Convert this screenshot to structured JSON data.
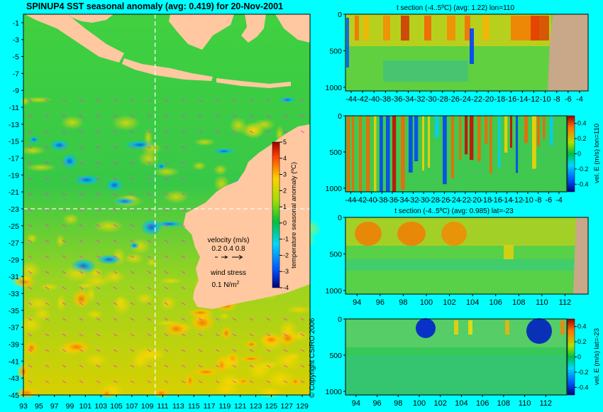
{
  "colors": {
    "background": "#00ffff",
    "land": "#ffc8a0",
    "section_land": "#c8a888",
    "grid": "#ffffff",
    "arrow": "#ff33cc"
  },
  "main_map": {
    "title": "SPINUP4 SST seasonal anomaly  (avg: 0.419)  for 20-Nov-2001",
    "colorbar_label": "temperature seasonal anomaly (ºC)",
    "colorbar_ticks": [
      "5",
      "4",
      "3",
      "2",
      "1",
      "0",
      "-1",
      "-2",
      "-3",
      "-4"
    ],
    "y_ticks": [
      "-1",
      "-3",
      "-5",
      "-7",
      "-9",
      "-11",
      "-13",
      "-15",
      "-17",
      "-19",
      "-21",
      "-23",
      "-25",
      "-27",
      "-29",
      "-31",
      "-33",
      "-35",
      "-37",
      "-39",
      "-41",
      "-43",
      "-45"
    ],
    "x_ticks": [
      "93",
      "95",
      "97",
      "99",
      "101",
      "103",
      "105",
      "107",
      "109",
      "111",
      "113",
      "115",
      "117",
      "119",
      "121",
      "123",
      "125",
      "127",
      "129"
    ],
    "section_lat": -23,
    "section_lon": 110,
    "legend": {
      "velocity_title": "velocity (m/s)",
      "velocity_scale": "0.2 0.4 0.8",
      "wind_title": "wind stress",
      "wind_scale": "0.1 N/m",
      "wind_scale_sup": "2"
    }
  },
  "copyright": "© Copyright CSIRO 2006",
  "chart_data": [
    {
      "type": "heatmap",
      "title": "SPINUP4 SST seasonal anomaly  (avg: 0.419)  for 20-Nov-2001",
      "x_ticks": [
        93,
        95,
        97,
        99,
        101,
        103,
        105,
        107,
        109,
        111,
        113,
        115,
        117,
        119,
        121,
        123,
        125,
        127,
        129
      ],
      "y_ticks": [
        -1,
        -3,
        -5,
        -7,
        -9,
        -11,
        -13,
        -15,
        -17,
        -19,
        -21,
        -23,
        -25,
        -27,
        -29,
        -31,
        -33,
        -35,
        -37,
        -39,
        -41,
        -43,
        -45
      ],
      "xlim": [
        93,
        130
      ],
      "ylim": [
        -45,
        0
      ],
      "color_range": [
        -4,
        5
      ]
    },
    {
      "type": "heatmap",
      "title": "t section (-4..5ºC) (avg: 1.22) lon=110",
      "x_ticks": [
        "-44",
        "-42",
        "-40",
        "-38",
        "-36",
        "-34",
        "-32",
        "-30",
        "-28",
        "-26",
        "-24",
        "-22",
        "-20",
        "-18",
        "-16",
        "-14",
        "-12",
        "-10",
        "-8",
        "-6",
        "-4"
      ],
      "y_ticks": [
        0,
        500,
        1000
      ],
      "xlim": [
        -45,
        -2.5
      ],
      "ylim": [
        1050,
        0
      ],
      "avg": 1.22
    },
    {
      "type": "heatmap",
      "title": "",
      "colorbar_label": "vel. E (m/s) lon=110",
      "colorbar_ticks": [
        "0.4",
        "0.2",
        "0",
        "-0.2",
        "-0.4"
      ],
      "x_ticks": [
        "-44",
        "-42",
        "-40",
        "-38",
        "-36",
        "-34",
        "-32",
        "-30",
        "-28",
        "-26",
        "-24",
        "-22",
        "-20",
        "-18",
        "-16",
        "-14",
        "-12",
        "-10",
        "-8",
        "-6",
        "-4"
      ],
      "y_ticks": [
        0,
        500,
        1000
      ],
      "xlim": [
        -45,
        -2.5
      ],
      "ylim": [
        1050,
        0
      ]
    },
    {
      "type": "heatmap",
      "title": "t section (-4..5ºC) (avg: 0.985) lat=-23",
      "x_ticks": [
        94,
        96,
        98,
        100,
        102,
        104,
        106,
        108,
        110,
        112
      ],
      "y_ticks": [
        0,
        500,
        1000
      ],
      "xlim": [
        93,
        114
      ],
      "ylim": [
        1050,
        0
      ],
      "avg": 0.985
    },
    {
      "type": "heatmap",
      "title": "",
      "colorbar_label": "vel. E (m/s) lat=-23",
      "colorbar_ticks": [
        "0.4",
        "0.2",
        "0",
        "-0.2",
        "-0.4"
      ],
      "x_ticks": [
        94,
        96,
        98,
        100,
        102,
        104,
        106,
        108,
        110,
        112
      ],
      "y_ticks": [
        0,
        500,
        1000
      ],
      "xlim": [
        93,
        114
      ],
      "ylim": [
        1050,
        0
      ]
    }
  ]
}
